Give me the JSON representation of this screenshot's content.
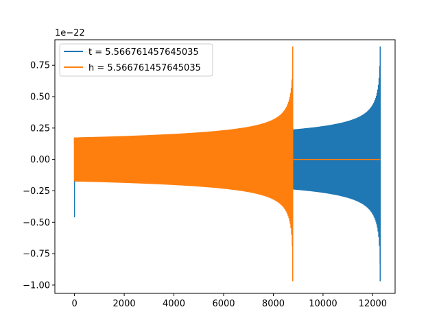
{
  "chart_data": {
    "type": "line",
    "title": "",
    "xlabel": "",
    "ylabel": "",
    "y_offset_label": "1e−22",
    "xlim": [
      -790,
      12900
    ],
    "ylim": [
      -1.066,
      0.953
    ],
    "xticks": [
      0,
      2000,
      4000,
      6000,
      8000,
      10000,
      12000
    ],
    "xtick_labels": [
      "0",
      "2000",
      "4000",
      "6000",
      "8000",
      "10000",
      "12000"
    ],
    "yticks": [
      -1.0,
      -0.75,
      -0.5,
      -0.25,
      0.0,
      0.25,
      0.5,
      0.75
    ],
    "ytick_labels": [
      "−1.00",
      "−0.75",
      "−0.50",
      "−0.25",
      "0.00",
      "0.25",
      "0.50",
      "0.75"
    ],
    "grid": false,
    "legend_position": "upper-left",
    "series": [
      {
        "name": "t = 5.566761457645035",
        "color": "#1f77b4",
        "segments": [
          {
            "x": [
              0,
              0,
              0,
              0,
              0
            ],
            "y": [
              0.11,
              -0.46,
              0.1,
              -0.18,
              0.17
            ]
          },
          {
            "x_start": 0,
            "x_end": 12300,
            "t_c": 12320,
            "amplitude_at_start": 0.175,
            "amplitude_exponent": -0.25,
            "baseline": 0.0
          },
          {
            "x": [
              12300,
              12300
            ],
            "y": [
              0.9,
              -0.97
            ]
          }
        ]
      },
      {
        "name": "h = 5.566761457645035",
        "color": "#ff7f0e",
        "segments": [
          {
            "x": [
              0,
              0,
              0
            ],
            "y": [
              -0.02,
              0.17,
              -0.17
            ]
          },
          {
            "x_start": 0,
            "x_end": 8780,
            "t_c": 8800,
            "amplitude_at_start": 0.175,
            "amplitude_exponent": -0.25,
            "baseline": 0.0
          },
          {
            "x": [
              8780,
              8780
            ],
            "y": [
              0.9,
              -0.97
            ]
          },
          {
            "x": [
              8780,
              12300
            ],
            "y": [
              0.0,
              0.0
            ]
          }
        ]
      }
    ]
  }
}
